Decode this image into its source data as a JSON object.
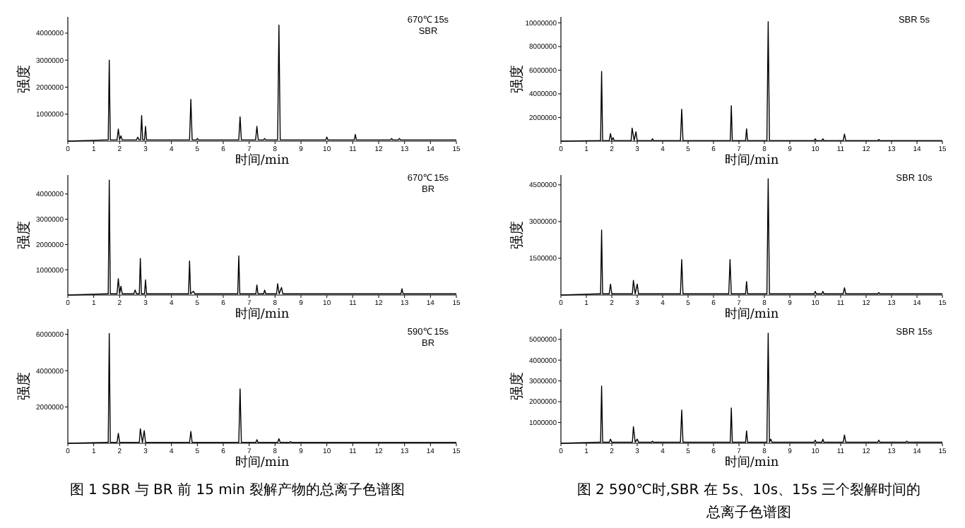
{
  "chart_data": [
    {
      "type": "line",
      "xlabel": "时间/min",
      "ylabel": "强度",
      "annotations": [
        "670℃ 15s",
        "SBR"
      ],
      "xlim": [
        0,
        15
      ],
      "xticks": [
        0,
        1,
        2,
        3,
        4,
        5,
        6,
        7,
        8,
        9,
        10,
        11,
        12,
        13,
        14,
        15
      ],
      "ylim": [
        0,
        4600000
      ],
      "yticks": [
        1000000,
        2000000,
        3000000,
        4000000
      ],
      "grid": false,
      "marker": "none",
      "series": [
        {
          "color": "#000000",
          "x": [
            0,
            1.5,
            1.56,
            1.6,
            1.64,
            1.9,
            1.95,
            2.0,
            2.05,
            2.1,
            2.65,
            2.7,
            2.75,
            2.81,
            2.85,
            2.89,
            2.96,
            3.0,
            3.04,
            4.7,
            4.75,
            4.8,
            4.96,
            5.0,
            5.04,
            6.6,
            6.65,
            6.7,
            7.25,
            7.3,
            7.35,
            7.56,
            7.6,
            7.64,
            8.1,
            8.15,
            8.2,
            9.96,
            10.0,
            10.04,
            11.06,
            11.1,
            11.14,
            12.46,
            12.5,
            12.54,
            12.76,
            12.8,
            12.84,
            15
          ],
          "values": [
            0,
            50000,
            50000,
            3000000,
            50000,
            50000,
            450000,
            50000,
            200000,
            50000,
            50000,
            150000,
            50000,
            50000,
            950000,
            50000,
            50000,
            550000,
            50000,
            50000,
            1550000,
            50000,
            50000,
            100000,
            50000,
            50000,
            900000,
            50000,
            50000,
            550000,
            50000,
            50000,
            100000,
            50000,
            50000,
            4300000,
            50000,
            50000,
            150000,
            50000,
            50000,
            250000,
            50000,
            50000,
            100000,
            50000,
            50000,
            100000,
            50000,
            50000
          ]
        }
      ]
    },
    {
      "type": "line",
      "xlabel": "时间/min",
      "ylabel": "强度",
      "annotations": [
        "670℃ 15s",
        "BR"
      ],
      "xlim": [
        0,
        15
      ],
      "xticks": [
        0,
        1,
        2,
        3,
        4,
        5,
        6,
        7,
        8,
        9,
        10,
        11,
        12,
        13,
        14,
        15
      ],
      "ylim": [
        0,
        4750000
      ],
      "yticks": [
        1000000,
        2000000,
        3000000,
        4000000
      ],
      "grid": false,
      "marker": "none",
      "series": [
        {
          "color": "#000000",
          "x": [
            0,
            1.5,
            1.56,
            1.6,
            1.64,
            1.9,
            1.95,
            2.0,
            2.05,
            2.1,
            2.55,
            2.6,
            2.65,
            2.76,
            2.8,
            2.84,
            2.96,
            3.0,
            3.04,
            4.66,
            4.7,
            4.74,
            4.85,
            4.9,
            6.56,
            6.6,
            6.64,
            7.26,
            7.3,
            7.34,
            7.56,
            7.6,
            7.64,
            8.06,
            8.1,
            8.16,
            8.25,
            8.3,
            12.86,
            12.9,
            12.94,
            15
          ],
          "values": [
            0,
            50000,
            50000,
            4550000,
            50000,
            50000,
            650000,
            50000,
            350000,
            50000,
            50000,
            200000,
            50000,
            50000,
            1450000,
            50000,
            50000,
            600000,
            50000,
            50000,
            1350000,
            50000,
            150000,
            50000,
            50000,
            1550000,
            50000,
            50000,
            400000,
            50000,
            50000,
            200000,
            50000,
            50000,
            450000,
            50000,
            300000,
            50000,
            50000,
            250000,
            50000,
            50000
          ]
        }
      ]
    },
    {
      "type": "line",
      "title": "图 1  SBR 与 BR 前 15 min 裂解产物的总离子色谱图",
      "xlabel": "时间/min",
      "ylabel": "强度",
      "annotations": [
        "590℃ 15s",
        "BR"
      ],
      "xlim": [
        0,
        15
      ],
      "xticks": [
        0,
        1,
        2,
        3,
        4,
        5,
        6,
        7,
        8,
        9,
        10,
        11,
        12,
        13,
        14,
        15
      ],
      "ylim": [
        0,
        6300000
      ],
      "yticks": [
        2000000,
        4000000,
        6000000
      ],
      "grid": false,
      "marker": "none",
      "series": [
        {
          "color": "#000000",
          "x": [
            0,
            1.5,
            1.56,
            1.6,
            1.64,
            1.9,
            1.95,
            2.0,
            2.76,
            2.8,
            2.88,
            2.95,
            3.0,
            4.7,
            4.75,
            4.8,
            6.6,
            6.65,
            6.7,
            7.26,
            7.3,
            7.34,
            8.1,
            8.15,
            8.2,
            8.56,
            8.6,
            8.64,
            15
          ],
          "values": [
            0,
            50000,
            50000,
            6050000,
            50000,
            50000,
            550000,
            50000,
            50000,
            800000,
            50000,
            700000,
            50000,
            50000,
            650000,
            50000,
            50000,
            3000000,
            50000,
            50000,
            200000,
            50000,
            50000,
            250000,
            50000,
            50000,
            100000,
            50000,
            50000
          ]
        }
      ]
    },
    {
      "type": "line",
      "xlabel": "时间/min",
      "ylabel": "强度",
      "annotations": [
        "SBR 5s"
      ],
      "xlim": [
        0,
        15
      ],
      "xticks": [
        0,
        1,
        2,
        3,
        4,
        5,
        6,
        7,
        8,
        9,
        10,
        11,
        12,
        13,
        14,
        15
      ],
      "ylim": [
        0,
        10500000
      ],
      "yticks": [
        2000000,
        4000000,
        6000000,
        8000000,
        10000000
      ],
      "grid": false,
      "marker": "none",
      "series": [
        {
          "color": "#000000",
          "x": [
            0,
            1.5,
            1.56,
            1.6,
            1.64,
            1.9,
            1.95,
            2.0,
            2.05,
            2.1,
            2.76,
            2.8,
            2.88,
            2.95,
            3.0,
            3.56,
            3.6,
            3.64,
            4.7,
            4.75,
            4.8,
            6.66,
            6.7,
            6.74,
            7.26,
            7.3,
            7.34,
            8.1,
            8.15,
            8.2,
            9.96,
            10.0,
            10.04,
            10.26,
            10.3,
            10.34,
            11.1,
            11.15,
            11.2,
            12.46,
            12.5,
            12.54,
            15
          ],
          "values": [
            0,
            50000,
            50000,
            5900000,
            50000,
            50000,
            650000,
            50000,
            300000,
            50000,
            50000,
            1100000,
            50000,
            800000,
            50000,
            50000,
            200000,
            50000,
            50000,
            2700000,
            50000,
            50000,
            3000000,
            50000,
            50000,
            1050000,
            50000,
            50000,
            10100000,
            50000,
            50000,
            200000,
            50000,
            50000,
            200000,
            50000,
            50000,
            600000,
            50000,
            50000,
            150000,
            50000,
            50000
          ]
        }
      ]
    },
    {
      "type": "line",
      "xlabel": "时间/min",
      "ylabel": "强度",
      "annotations": [
        "SBR 10s"
      ],
      "xlim": [
        0,
        15
      ],
      "xticks": [
        0,
        1,
        2,
        3,
        4,
        5,
        6,
        7,
        8,
        9,
        10,
        11,
        12,
        13,
        14,
        15
      ],
      "ylim": [
        0,
        4900000
      ],
      "yticks": [
        1500000,
        3000000,
        4500000
      ],
      "grid": false,
      "marker": "none",
      "series": [
        {
          "color": "#000000",
          "x": [
            0,
            1.5,
            1.56,
            1.6,
            1.64,
            1.9,
            1.95,
            2.0,
            2.81,
            2.85,
            2.92,
            3.0,
            3.05,
            4.7,
            4.75,
            4.8,
            6.6,
            6.65,
            6.7,
            7.26,
            7.3,
            7.34,
            8.1,
            8.15,
            8.2,
            9.96,
            10.0,
            10.04,
            10.26,
            10.3,
            10.34,
            11.1,
            11.15,
            11.2,
            12.46,
            12.5,
            12.54,
            15
          ],
          "values": [
            0,
            50000,
            50000,
            2650000,
            50000,
            50000,
            450000,
            50000,
            50000,
            600000,
            50000,
            450000,
            50000,
            50000,
            1450000,
            50000,
            50000,
            1450000,
            50000,
            50000,
            550000,
            50000,
            50000,
            4750000,
            50000,
            50000,
            150000,
            50000,
            50000,
            150000,
            50000,
            50000,
            300000,
            50000,
            50000,
            100000,
            50000,
            50000
          ]
        }
      ]
    },
    {
      "type": "line",
      "title": "图 2  590℃时,SBR 在 5s、10s、15s 三个裂解时间的",
      "subtitle": "总离子色谱图",
      "xlabel": "时间/min",
      "ylabel": "强度",
      "annotations": [
        "SBR 15s"
      ],
      "xlim": [
        0,
        15
      ],
      "xticks": [
        0,
        1,
        2,
        3,
        4,
        5,
        6,
        7,
        8,
        9,
        10,
        11,
        12,
        13,
        14,
        15
      ],
      "ylim": [
        0,
        5500000
      ],
      "yticks": [
        1000000,
        2000000,
        3000000,
        4000000,
        5000000
      ],
      "grid": false,
      "marker": "none",
      "series": [
        {
          "color": "#000000",
          "x": [
            0,
            1.5,
            1.56,
            1.6,
            1.64,
            1.9,
            1.95,
            2.0,
            2.81,
            2.85,
            2.92,
            3.0,
            3.05,
            3.56,
            3.6,
            3.64,
            4.7,
            4.75,
            4.8,
            6.66,
            6.7,
            6.74,
            7.26,
            7.3,
            7.34,
            8.1,
            8.15,
            8.2,
            8.25,
            8.3,
            9.96,
            10.0,
            10.04,
            10.26,
            10.3,
            10.34,
            11.1,
            11.15,
            11.2,
            12.46,
            12.5,
            12.54,
            13.56,
            13.6,
            13.64,
            15
          ],
          "values": [
            0,
            50000,
            50000,
            2750000,
            50000,
            50000,
            200000,
            50000,
            50000,
            800000,
            50000,
            200000,
            50000,
            50000,
            100000,
            50000,
            50000,
            1600000,
            50000,
            50000,
            1700000,
            50000,
            50000,
            600000,
            50000,
            50000,
            5300000,
            50000,
            200000,
            50000,
            50000,
            150000,
            50000,
            50000,
            200000,
            50000,
            50000,
            400000,
            50000,
            50000,
            150000,
            50000,
            50000,
            100000,
            50000,
            50000
          ]
        }
      ]
    }
  ]
}
